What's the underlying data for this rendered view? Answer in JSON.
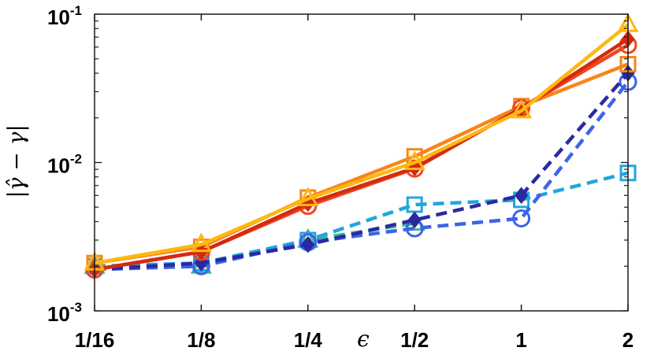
{
  "chart_data": {
    "type": "line",
    "title": "",
    "xlabel": "ϵ",
    "ylabel": "|γ̂ − γ|",
    "categories": [
      "1/16",
      "1/8",
      "1/4",
      "1/2",
      "1",
      "2"
    ],
    "x": [
      0.0625,
      0.125,
      0.25,
      0.5,
      1,
      2
    ],
    "xscale": "log2",
    "yscale": "log10",
    "ylim": [
      0.001,
      0.1
    ],
    "ytick_values": [
      0.001,
      0.01,
      0.1
    ],
    "yticks": [
      {
        "base": "10",
        "exp": "-3"
      },
      {
        "base": "10",
        "exp": "-2"
      },
      {
        "base": "10",
        "exp": "-1"
      }
    ],
    "grid": false,
    "legend": "none",
    "series": [
      {
        "style": "solid",
        "marker": "diamond",
        "color": "#d42a10",
        "values": [
          0.0019,
          0.0025,
          0.0053,
          0.0092,
          0.0232,
          0.068
        ]
      },
      {
        "style": "solid",
        "marker": "circle",
        "color": "#f0461e",
        "values": [
          0.0019,
          0.0025,
          0.0051,
          0.0091,
          0.0233,
          0.062
        ]
      },
      {
        "style": "solid",
        "marker": "square",
        "color": "#f7861a",
        "values": [
          0.0021,
          0.0027,
          0.0058,
          0.011,
          0.024,
          0.046
        ]
      },
      {
        "style": "solid",
        "marker": "triangle",
        "color": "#fdb811",
        "values": [
          0.0021,
          0.0028,
          0.0057,
          0.01,
          0.0223,
          0.085
        ]
      },
      {
        "style": "dashed",
        "marker": "diamond",
        "color": "#2a2aa0",
        "values": [
          0.0019,
          0.0021,
          0.0028,
          0.0041,
          0.006,
          0.04
        ]
      },
      {
        "style": "dashed",
        "marker": "circle",
        "color": "#3c64e6",
        "values": [
          0.0019,
          0.002,
          0.0029,
          0.0036,
          0.0042,
          0.035
        ]
      },
      {
        "style": "dashed",
        "marker": "square",
        "color": "#22a6dc",
        "values": [
          0.002,
          0.0021,
          0.003,
          0.0052,
          0.0056,
          0.0085
        ]
      },
      {
        "style": "dashed",
        "marker": "triangle",
        "color": "#3cba86",
        "values": [
          0.002,
          0.002,
          0.003,
          0.0039,
          null,
          null
        ]
      }
    ]
  }
}
